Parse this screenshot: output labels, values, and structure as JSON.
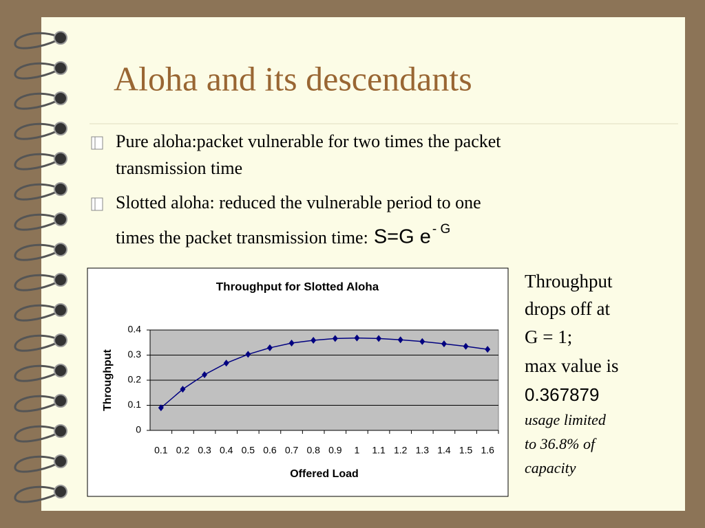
{
  "title": "Aloha and its descendants",
  "bullets": [
    {
      "lines": [
        "Pure aloha:packet vulnerable for two times the packet",
        "transmission time"
      ]
    },
    {
      "lines": [
        "Slotted aloha: reduced the vulnerable period to one",
        "times the packet transmission time:"
      ],
      "formula": "S=G e",
      "superscript": "- G"
    }
  ],
  "note": {
    "lines": [
      "Throughput",
      "drops off at",
      "G = 1;",
      "max value is"
    ],
    "max_value": "0.367879",
    "italic_lines": [
      "usage limited",
      "to 36.8% of",
      "capacity"
    ]
  },
  "chart_data": {
    "type": "line",
    "title": "Throughput for Slotted Aloha",
    "x_label": "Offered Load",
    "y_label": "Throughput",
    "categories": [
      "0.1",
      "0.2",
      "0.3",
      "0.4",
      "0.5",
      "0.6",
      "0.7",
      "0.8",
      "0.9",
      "1",
      "1.1",
      "1.2",
      "1.3",
      "1.4",
      "1.5",
      "1.6"
    ],
    "series": [
      {
        "name": "Throughput",
        "color": "#000080",
        "values": [
          0.09,
          0.164,
          0.222,
          0.268,
          0.303,
          0.329,
          0.348,
          0.359,
          0.366,
          0.368,
          0.366,
          0.361,
          0.354,
          0.345,
          0.335,
          0.323
        ]
      }
    ],
    "ylim": [
      0,
      0.4
    ],
    "yticks": [
      0,
      0.1,
      0.2,
      0.3,
      0.4
    ],
    "grid": true,
    "plot_color": "#c0c0c0"
  }
}
